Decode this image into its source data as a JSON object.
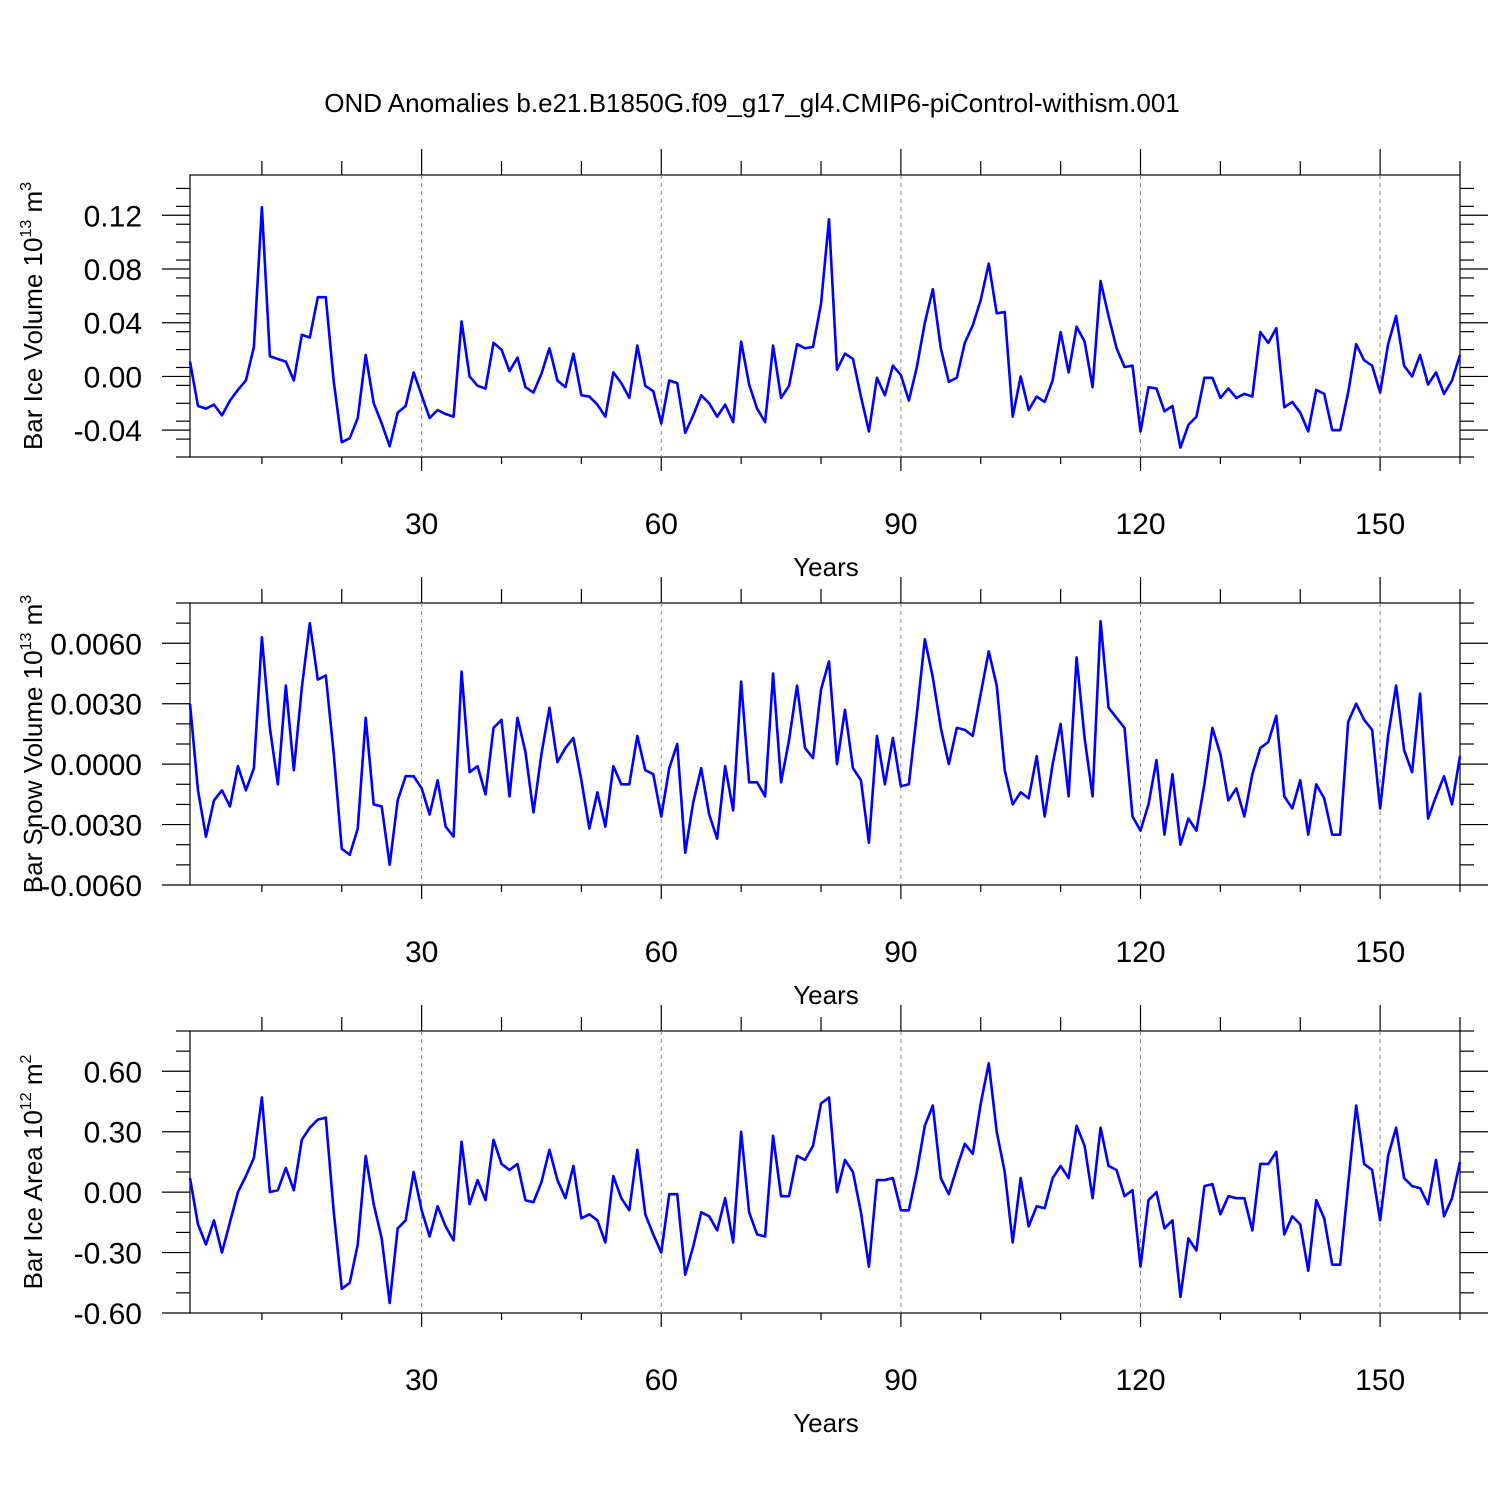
{
  "title": "OND Anomalies b.e21.B1850G.f09_g17_gl4.CMIP6-piControl-withism.001",
  "chart_data": [
    {
      "type": "line",
      "ylabel": {
        "main": "Bar Ice Volume 10",
        "exp": "13",
        "unit": " m",
        "unit_exp": "3"
      },
      "xlabel": "Years",
      "xlim": [
        1,
        160
      ],
      "ylim": [
        -0.06,
        0.15
      ],
      "x_ticks": [
        "30",
        "60",
        "90",
        "120",
        "150"
      ],
      "y_ticks": [
        "-0.04",
        "0.00",
        "0.04",
        "0.08",
        "0.12"
      ],
      "y_tick_values": [
        -0.04,
        0.0,
        0.04,
        0.08,
        0.12
      ],
      "grid": "dashed vertical lines at major x ticks",
      "line_color": "#0000ff",
      "values": [
        0.011,
        -0.022,
        -0.024,
        -0.021,
        -0.029,
        -0.018,
        -0.01,
        -0.003,
        0.022,
        0.126,
        0.015,
        0.013,
        0.011,
        -0.003,
        0.031,
        0.029,
        0.059,
        0.059,
        -0.004,
        -0.049,
        -0.046,
        -0.031,
        0.016,
        -0.02,
        -0.035,
        -0.052,
        -0.027,
        -0.022,
        0.003,
        -0.014,
        -0.031,
        -0.025,
        -0.028,
        -0.03,
        0.041,
        0.0,
        -0.007,
        -0.009,
        0.025,
        0.02,
        0.004,
        0.014,
        -0.008,
        -0.012,
        0.002,
        0.021,
        -0.003,
        -0.008,
        0.017,
        -0.014,
        -0.015,
        -0.021,
        -0.03,
        0.003,
        -0.005,
        -0.016,
        0.023,
        -0.007,
        -0.011,
        -0.035,
        -0.003,
        -0.005,
        -0.042,
        -0.029,
        -0.014,
        -0.02,
        -0.03,
        -0.021,
        -0.034,
        0.026,
        -0.006,
        -0.024,
        -0.034,
        0.023,
        -0.016,
        -0.007,
        0.024,
        0.021,
        0.022,
        0.054,
        0.117,
        0.005,
        0.017,
        0.013,
        -0.015,
        -0.041,
        -0.001,
        -0.014,
        0.008,
        0.001,
        -0.018,
        0.007,
        0.04,
        0.065,
        0.021,
        -0.004,
        -0.001,
        0.025,
        0.038,
        0.057,
        0.084,
        0.047,
        0.048,
        -0.03,
        0.0,
        -0.025,
        -0.015,
        -0.019,
        -0.003,
        0.033,
        0.003,
        0.037,
        0.026,
        -0.008,
        0.071,
        0.045,
        0.021,
        0.007,
        0.008,
        -0.041,
        -0.008,
        -0.009,
        -0.026,
        -0.022,
        -0.053,
        -0.036,
        -0.03,
        -0.001,
        -0.001,
        -0.016,
        -0.009,
        -0.016,
        -0.013,
        -0.015,
        0.033,
        0.025,
        0.036,
        -0.023,
        -0.019,
        -0.027,
        -0.041,
        -0.01,
        -0.013,
        -0.04,
        -0.04,
        -0.012,
        0.024,
        0.012,
        0.008,
        -0.012,
        0.024,
        0.045,
        0.008,
        0.0,
        0.016,
        -0.006,
        0.003,
        -0.013,
        -0.003,
        0.016
      ]
    },
    {
      "type": "line",
      "ylabel": {
        "main": "Bar Snow Volume 10",
        "exp": "13",
        "unit": " m",
        "unit_exp": "3"
      },
      "xlabel": "Years",
      "xlim": [
        1,
        160
      ],
      "ylim": [
        -0.006,
        0.008
      ],
      "x_ticks": [
        "30",
        "60",
        "90",
        "120",
        "150"
      ],
      "y_ticks": [
        "-0.0060",
        "-0.0030",
        "0.0000",
        "0.0030",
        "0.0060"
      ],
      "y_tick_values": [
        -0.006,
        -0.003,
        0.0,
        0.003,
        0.006
      ],
      "grid": "dashed vertical lines at major x ticks",
      "line_color": "#0000ff",
      "values": [
        0.003,
        -0.0013,
        -0.0036,
        -0.0018,
        -0.0013,
        -0.0021,
        -0.0001,
        -0.0013,
        -0.0002,
        0.0063,
        0.0018,
        -0.001,
        0.0039,
        -0.0003,
        0.0038,
        0.007,
        0.0042,
        0.0044,
        0.0005,
        -0.0042,
        -0.0045,
        -0.0032,
        0.0023,
        -0.002,
        -0.0021,
        -0.005,
        -0.0018,
        -0.0006,
        -0.0006,
        -0.0012,
        -0.0025,
        -0.0008,
        -0.0031,
        -0.0036,
        0.0046,
        -0.0004,
        -0.0001,
        -0.0015,
        0.0018,
        0.0022,
        -0.0016,
        0.0023,
        0.0006,
        -0.0024,
        0.0005,
        0.0028,
        0.0001,
        0.0008,
        0.0013,
        -0.0008,
        -0.0032,
        -0.0014,
        -0.0031,
        -0.0001,
        -0.001,
        -0.001,
        0.0014,
        -0.0003,
        -0.0005,
        -0.0026,
        -0.0002,
        0.001,
        -0.0044,
        -0.0019,
        -0.0002,
        -0.0025,
        -0.0037,
        -0.0001,
        -0.0023,
        0.0041,
        -0.0009,
        -0.0009,
        -0.0016,
        0.0045,
        -0.0009,
        0.0012,
        0.0039,
        0.0008,
        0.0003,
        0.0037,
        0.0051,
        0.0,
        0.0027,
        -0.0002,
        -0.0008,
        -0.0039,
        0.0014,
        -0.001,
        0.0013,
        -0.0011,
        -0.001,
        0.0025,
        0.0062,
        0.0043,
        0.0018,
        0.0,
        0.0018,
        0.0017,
        0.0014,
        0.0035,
        0.0056,
        0.0039,
        -0.0003,
        -0.002,
        -0.0014,
        -0.0017,
        0.0004,
        -0.0026,
        0.0,
        0.002,
        -0.0016,
        0.0053,
        0.0013,
        -0.0016,
        0.0071,
        0.0028,
        0.0023,
        0.0018,
        -0.0026,
        -0.0033,
        -0.002,
        0.0002,
        -0.0035,
        -0.0005,
        -0.004,
        -0.0027,
        -0.0033,
        -0.001,
        0.0018,
        0.0005,
        -0.0018,
        -0.0012,
        -0.0026,
        -0.0005,
        0.0008,
        0.0011,
        0.0024,
        -0.0016,
        -0.0022,
        -0.0008,
        -0.0035,
        -0.001,
        -0.0017,
        -0.0035,
        -0.0035,
        0.0021,
        0.003,
        0.0022,
        0.0017,
        -0.0022,
        0.0014,
        0.0039,
        0.0007,
        -0.0004,
        0.0035,
        -0.0027,
        -0.0016,
        -0.0006,
        -0.002,
        0.0004
      ]
    },
    {
      "type": "line",
      "ylabel": {
        "main": "Bar Ice Area 10",
        "exp": "12",
        "unit": " m",
        "unit_exp": "2"
      },
      "xlabel": "Years",
      "xlim": [
        1,
        160
      ],
      "ylim": [
        -0.6,
        0.8
      ],
      "x_ticks": [
        "30",
        "60",
        "90",
        "120",
        "150"
      ],
      "y_ticks": [
        "-0.60",
        "-0.30",
        "0.00",
        "0.30",
        "0.60"
      ],
      "y_tick_values": [
        -0.6,
        -0.3,
        0.0,
        0.3,
        0.6
      ],
      "grid": "dashed vertical lines at major x ticks",
      "line_color": "#0000ff",
      "values": [
        0.07,
        -0.16,
        -0.26,
        -0.14,
        -0.3,
        -0.15,
        0.0,
        0.08,
        0.17,
        0.47,
        0.0,
        0.01,
        0.12,
        0.01,
        0.26,
        0.32,
        0.36,
        0.37,
        -0.1,
        -0.48,
        -0.45,
        -0.26,
        0.18,
        -0.06,
        -0.23,
        -0.55,
        -0.18,
        -0.14,
        0.1,
        -0.09,
        -0.22,
        -0.07,
        -0.17,
        -0.24,
        0.25,
        -0.06,
        0.06,
        -0.04,
        0.26,
        0.14,
        0.11,
        0.14,
        -0.04,
        -0.05,
        0.05,
        0.21,
        0.06,
        -0.03,
        0.13,
        -0.13,
        -0.11,
        -0.14,
        -0.25,
        0.08,
        -0.03,
        -0.09,
        0.21,
        -0.11,
        -0.21,
        -0.3,
        -0.01,
        -0.01,
        -0.41,
        -0.27,
        -0.1,
        -0.12,
        -0.19,
        -0.03,
        -0.25,
        0.3,
        -0.1,
        -0.21,
        -0.22,
        0.28,
        -0.02,
        -0.02,
        0.18,
        0.16,
        0.23,
        0.44,
        0.47,
        0.0,
        0.16,
        0.1,
        -0.1,
        -0.37,
        0.06,
        0.06,
        0.07,
        -0.09,
        -0.09,
        0.1,
        0.33,
        0.43,
        0.07,
        -0.01,
        0.12,
        0.24,
        0.19,
        0.44,
        0.64,
        0.3,
        0.1,
        -0.25,
        0.07,
        -0.17,
        -0.07,
        -0.08,
        0.07,
        0.13,
        0.07,
        0.33,
        0.23,
        -0.03,
        0.32,
        0.13,
        0.11,
        -0.02,
        0.01,
        -0.37,
        -0.04,
        0.0,
        -0.18,
        -0.14,
        -0.52,
        -0.23,
        -0.29,
        0.03,
        0.04,
        -0.11,
        -0.02,
        -0.03,
        -0.03,
        -0.19,
        0.14,
        0.14,
        0.2,
        -0.21,
        -0.12,
        -0.16,
        -0.39,
        -0.04,
        -0.13,
        -0.36,
        -0.36,
        0.04,
        0.43,
        0.14,
        0.11,
        -0.14,
        0.18,
        0.32,
        0.07,
        0.03,
        0.02,
        -0.06,
        0.16,
        -0.12,
        -0.03,
        0.15
      ]
    }
  ]
}
